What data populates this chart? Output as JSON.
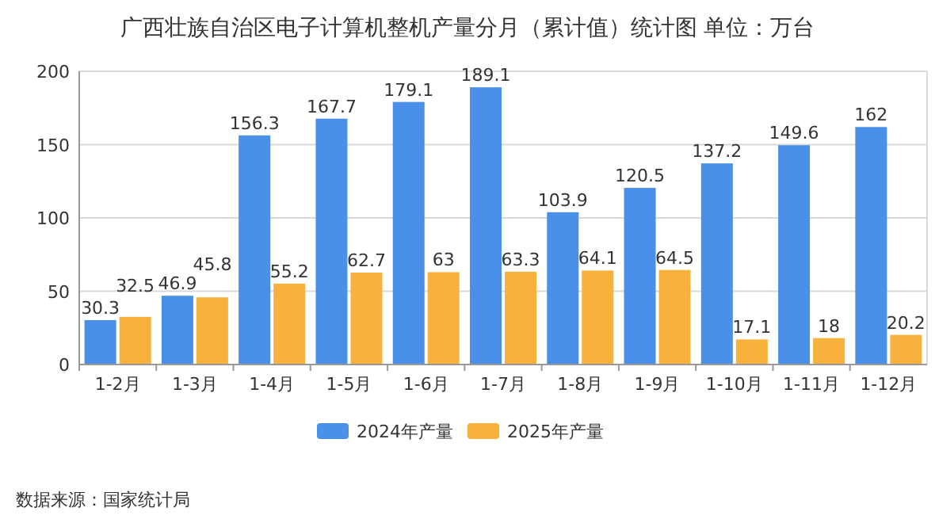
{
  "chart_data": {
    "type": "bar",
    "title": "广西壮族自治区电子计算机整机产量分月（累计值）统计图 单位：万台",
    "categories": [
      "1-2月",
      "1-3月",
      "1-4月",
      "1-5月",
      "1-6月",
      "1-7月",
      "1-8月",
      "1-9月",
      "1-10月",
      "1-11月",
      "1-12月"
    ],
    "series": [
      {
        "name": "2024年产量",
        "color": "#4a8fe8",
        "values": [
          30.3,
          46.9,
          156.3,
          167.7,
          179.1,
          189.1,
          103.9,
          120.5,
          137.2,
          149.6,
          162
        ]
      },
      {
        "name": "2025年产量",
        "color": "#f7b13c",
        "values": [
          32.5,
          45.8,
          55.2,
          62.7,
          63,
          63.3,
          64.1,
          64.5,
          17.1,
          18,
          20.2
        ]
      }
    ],
    "ylim": [
      0,
      200
    ],
    "yticks": [
      0,
      50,
      100,
      150,
      200
    ],
    "grid": "y",
    "legend": "bottom",
    "data_labels": true,
    "annotations": [
      "数据来源：国家统计局"
    ]
  }
}
